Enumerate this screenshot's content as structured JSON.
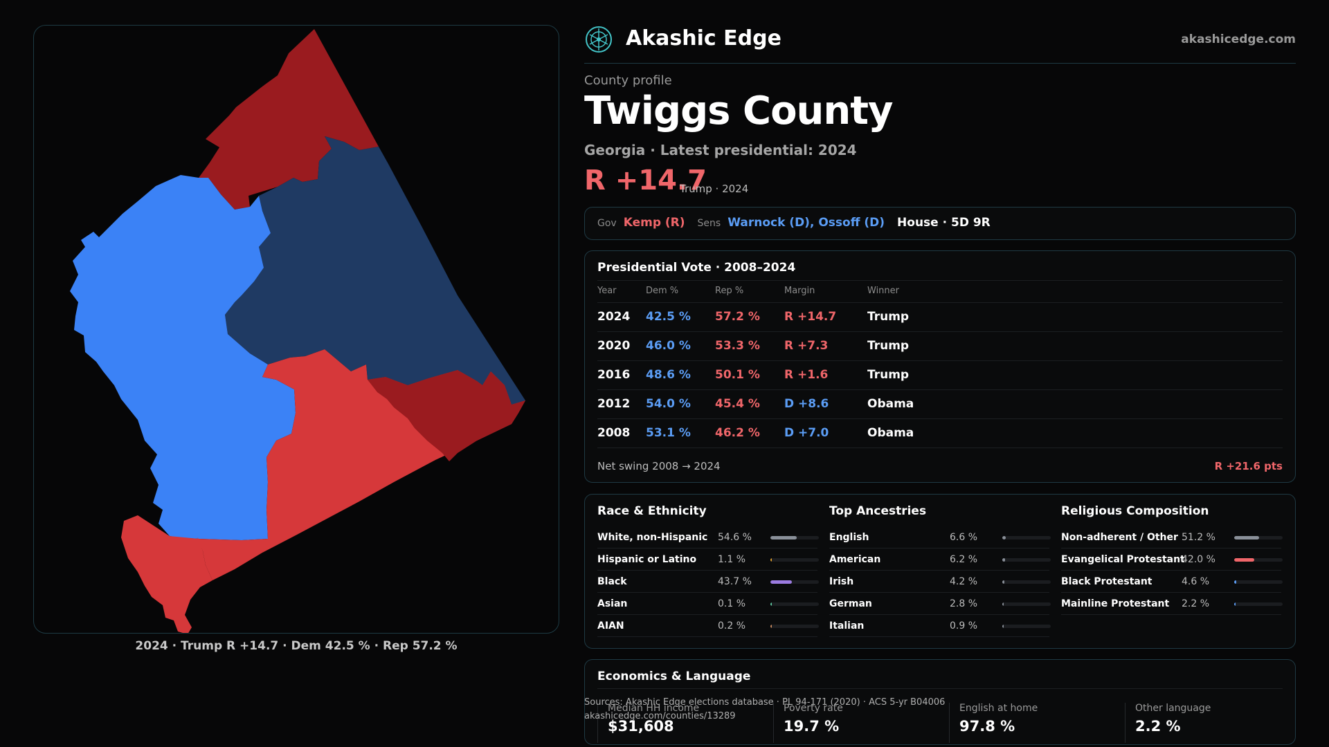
{
  "brand": {
    "name": "Akashic Edge",
    "site": "akashicedge.com"
  },
  "profile": {
    "eyebrow": "County profile",
    "county": "Twiggs County",
    "subtitle": "Georgia · Latest presidential: 2024",
    "margin": "R +14.7",
    "margin_note": "Trump · 2024"
  },
  "officials": {
    "gov_label": "Gov",
    "gov": "Kemp (R)",
    "sens_label": "Sens",
    "sens": "Warnock (D), Ossoff (D)",
    "house": "House · 5D 9R"
  },
  "vote": {
    "title": "Presidential Vote · 2008–2024",
    "headers": [
      "Year",
      "Dem %",
      "Rep %",
      "Margin",
      "Winner"
    ],
    "rows": [
      {
        "year": "2024",
        "dem": "42.5 %",
        "rep": "57.2 %",
        "margin": "R +14.7",
        "party": "R",
        "winner": "Trump"
      },
      {
        "year": "2020",
        "dem": "46.0 %",
        "rep": "53.3 %",
        "margin": "R +7.3",
        "party": "R",
        "winner": "Trump"
      },
      {
        "year": "2016",
        "dem": "48.6 %",
        "rep": "50.1 %",
        "margin": "R +1.6",
        "party": "R",
        "winner": "Trump"
      },
      {
        "year": "2012",
        "dem": "54.0 %",
        "rep": "45.4 %",
        "margin": "D +8.6",
        "party": "D",
        "winner": "Obama"
      },
      {
        "year": "2008",
        "dem": "53.1 %",
        "rep": "46.2 %",
        "margin": "D +7.0",
        "party": "D",
        "winner": "Obama"
      }
    ],
    "swing_label": "Net swing 2008 → 2024",
    "swing_value": "R +21.6 pts"
  },
  "race": {
    "title": "Race & Ethnicity",
    "items": [
      {
        "name": "White, non-Hispanic",
        "pct": "54.6 %",
        "value": 54.6,
        "color": "#8a9099"
      },
      {
        "name": "Hispanic or Latino",
        "pct": "1.1 %",
        "value": 1.1,
        "color": "#e0a030"
      },
      {
        "name": "Black",
        "pct": "43.7 %",
        "value": 43.7,
        "color": "#9b7be0"
      },
      {
        "name": "Asian",
        "pct": "0.1 %",
        "value": 0.1,
        "color": "#5fc9a0"
      },
      {
        "name": "AIAN",
        "pct": "0.2 %",
        "value": 0.2,
        "color": "#c98a5f"
      }
    ]
  },
  "ancestry": {
    "title": "Top Ancestries",
    "items": [
      {
        "name": "English",
        "pct": "6.6 %",
        "value": 6.6
      },
      {
        "name": "American",
        "pct": "6.2 %",
        "value": 6.2
      },
      {
        "name": "Irish",
        "pct": "4.2 %",
        "value": 4.2
      },
      {
        "name": "German",
        "pct": "2.8 %",
        "value": 2.8
      },
      {
        "name": "Italian",
        "pct": "0.9 %",
        "value": 0.9
      }
    ],
    "color": "#8a9099"
  },
  "religion": {
    "title": "Religious Composition",
    "items": [
      {
        "name": "Non-adherent / Other",
        "pct": "51.2 %",
        "value": 51.2,
        "color": "#8a9099"
      },
      {
        "name": "Evangelical Protestant",
        "pct": "42.0 %",
        "value": 42.0,
        "color": "#f0666a"
      },
      {
        "name": "Black Protestant",
        "pct": "4.6 %",
        "value": 4.6,
        "color": "#5b9df5"
      },
      {
        "name": "Mainline Protestant",
        "pct": "2.2 %",
        "value": 2.2,
        "color": "#5b9df5"
      }
    ]
  },
  "economics": {
    "title": "Economics & Language",
    "stats": [
      {
        "label": "Median HH income",
        "value": "$31,608"
      },
      {
        "label": "Poverty rate",
        "value": "19.7 %"
      },
      {
        "label": "English at home",
        "value": "97.8 %"
      },
      {
        "label": "Other language",
        "value": "2.2 %"
      }
    ]
  },
  "sources": {
    "line1": "Sources: Akashic Edge elections database · PL 94-171 (2020) · ACS 5-yr B04006",
    "line2": "akashicedge.com/counties/13289"
  },
  "map": {
    "caption": "2024 · Trump R +14.7 · Dem 42.5 % · Rep 57.2 %",
    "colors": {
      "dark_red": "#9a1b1f",
      "red": "#d6383a",
      "dark_blue": "#1f3a63",
      "blue": "#3b82f6"
    }
  }
}
